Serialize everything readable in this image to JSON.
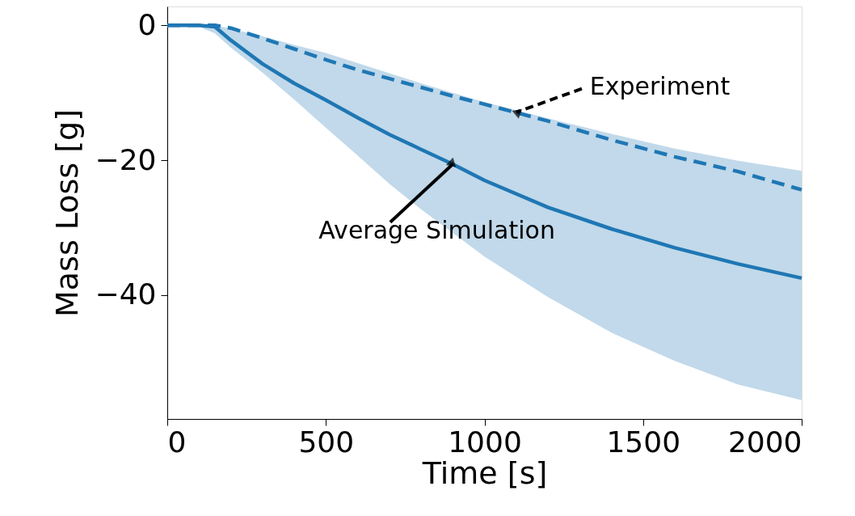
{
  "chart_data": {
    "type": "line",
    "xlabel": "Time [s]",
    "ylabel": "Mass Loss [g]",
    "x": [
      0,
      100,
      150,
      200,
      300,
      400,
      500,
      600,
      700,
      800,
      900,
      1000,
      1200,
      1400,
      1600,
      1800,
      2000
    ],
    "series": [
      {
        "color": "#1f77b4",
        "line_style": "solid",
        "values": [
          0,
          0,
          -0.2,
          -2.2,
          -5.7,
          -8.6,
          -11.1,
          -13.7,
          -16.2,
          -18.4,
          -20.6,
          -23.0,
          -27.0,
          -30.2,
          -33.0,
          -35.4,
          -37.5
        ],
        "lower": [
          0,
          -0.2,
          -1.2,
          -3.3,
          -7.0,
          -11.0,
          -15.2,
          -19.3,
          -23.5,
          -27.3,
          -30.8,
          -34.3,
          -40.3,
          -45.6,
          -49.8,
          -53.3,
          -55.6
        ],
        "upper": [
          0,
          0,
          0,
          -0.5,
          -1.6,
          -2.9,
          -4.1,
          -5.6,
          -7.1,
          -8.6,
          -10.0,
          -11.4,
          -13.8,
          -16.1,
          -18.3,
          -20.1,
          -21.6
        ]
      },
      {
        "color": "#1f77b4",
        "line_style": "dashed",
        "values": [
          0,
          0,
          0,
          -0.4,
          -1.9,
          -3.5,
          -5.1,
          -6.6,
          -7.9,
          -9.2,
          -10.5,
          -11.7,
          -14.2,
          -17.0,
          -19.5,
          -21.7,
          -24.4
        ]
      }
    ],
    "annotations": [
      {
        "text": "Experiment",
        "x": 1100,
        "y": -12.9
      },
      {
        "text": "Average Simulation",
        "x": 900,
        "y": -20.6
      }
    ],
    "xlim": [
      0,
      2000
    ],
    "xticks": [
      0,
      500,
      1000,
      1500,
      2000
    ],
    "ylim": [
      -58.4,
      2.8
    ],
    "yticks": [
      0,
      -20,
      -40
    ],
    "grid": false,
    "marker": "none"
  }
}
